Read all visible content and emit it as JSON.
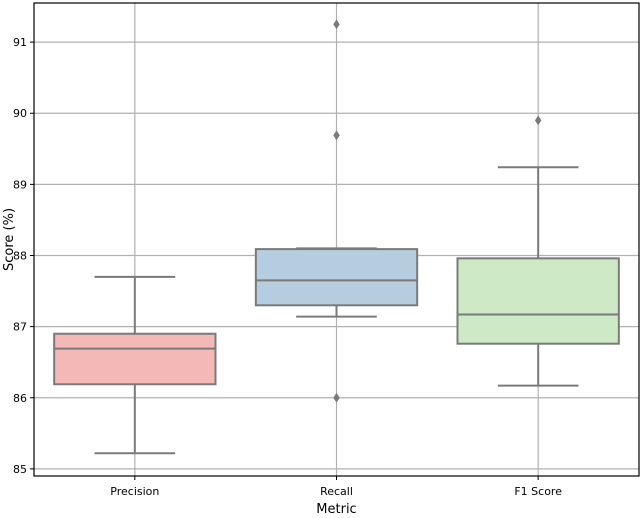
{
  "chart_data": {
    "type": "box",
    "title": "",
    "xlabel": "Metric",
    "ylabel": "Score (%)",
    "ylim": [
      84.9,
      91.55
    ],
    "yticks": [
      85,
      86,
      87,
      88,
      89,
      90,
      91
    ],
    "grid": true,
    "categories": [
      "Precision",
      "Recall",
      "F1 Score"
    ],
    "boxes": [
      {
        "category": "Precision",
        "whisker_low": 85.22,
        "q1": 86.19,
        "median": 86.69,
        "q3": 86.9,
        "whisker_high": 87.7,
        "outliers": [],
        "color": "#f4b9b6"
      },
      {
        "category": "Recall",
        "whisker_low": 87.14,
        "q1": 87.3,
        "median": 87.65,
        "q3": 88.09,
        "whisker_high": 88.1,
        "outliers": [
          86.0,
          89.69,
          91.25
        ],
        "color": "#b6cde0"
      },
      {
        "category": "F1 Score",
        "whisker_low": 86.17,
        "q1": 86.76,
        "median": 87.17,
        "q3": 87.96,
        "whisker_high": 89.24,
        "outliers": [
          89.9
        ],
        "color": "#cde9c6"
      }
    ]
  }
}
